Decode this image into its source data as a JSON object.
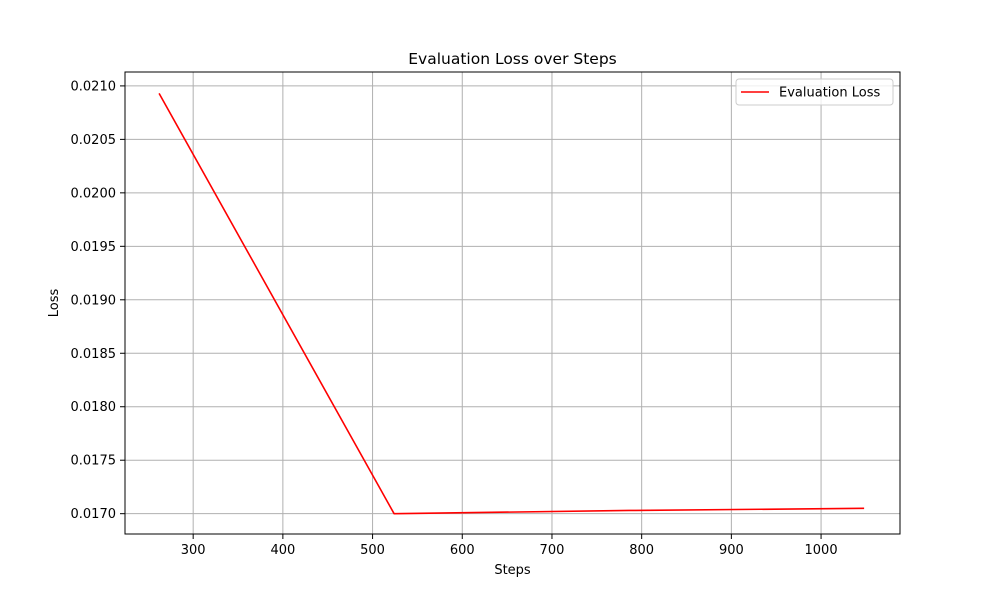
{
  "chart_data": {
    "type": "line",
    "title": "Evaluation Loss over Steps",
    "xlabel": "Steps",
    "ylabel": "Loss",
    "xlim": [
      224,
      1088
    ],
    "ylim": [
      0.01681,
      0.02113
    ],
    "xticks": [
      300,
      400,
      500,
      600,
      700,
      800,
      900,
      1000
    ],
    "xtick_labels": [
      "300",
      "400",
      "500",
      "600",
      "700",
      "800",
      "900",
      "1000"
    ],
    "yticks": [
      0.017,
      0.0175,
      0.018,
      0.0185,
      0.019,
      0.0195,
      0.02,
      0.0205,
      0.021
    ],
    "ytick_labels": [
      "0.0170",
      "0.0175",
      "0.0180",
      "0.0185",
      "0.0190",
      "0.0195",
      "0.0200",
      "0.0205",
      "0.0210"
    ],
    "grid": true,
    "legend_position": "top-right",
    "series": [
      {
        "name": "Evaluation Loss",
        "color": "#ff0000",
        "x": [
          262,
          524,
          786,
          1048
        ],
        "y": [
          0.02093,
          0.017,
          0.01703,
          0.01705
        ]
      }
    ]
  }
}
